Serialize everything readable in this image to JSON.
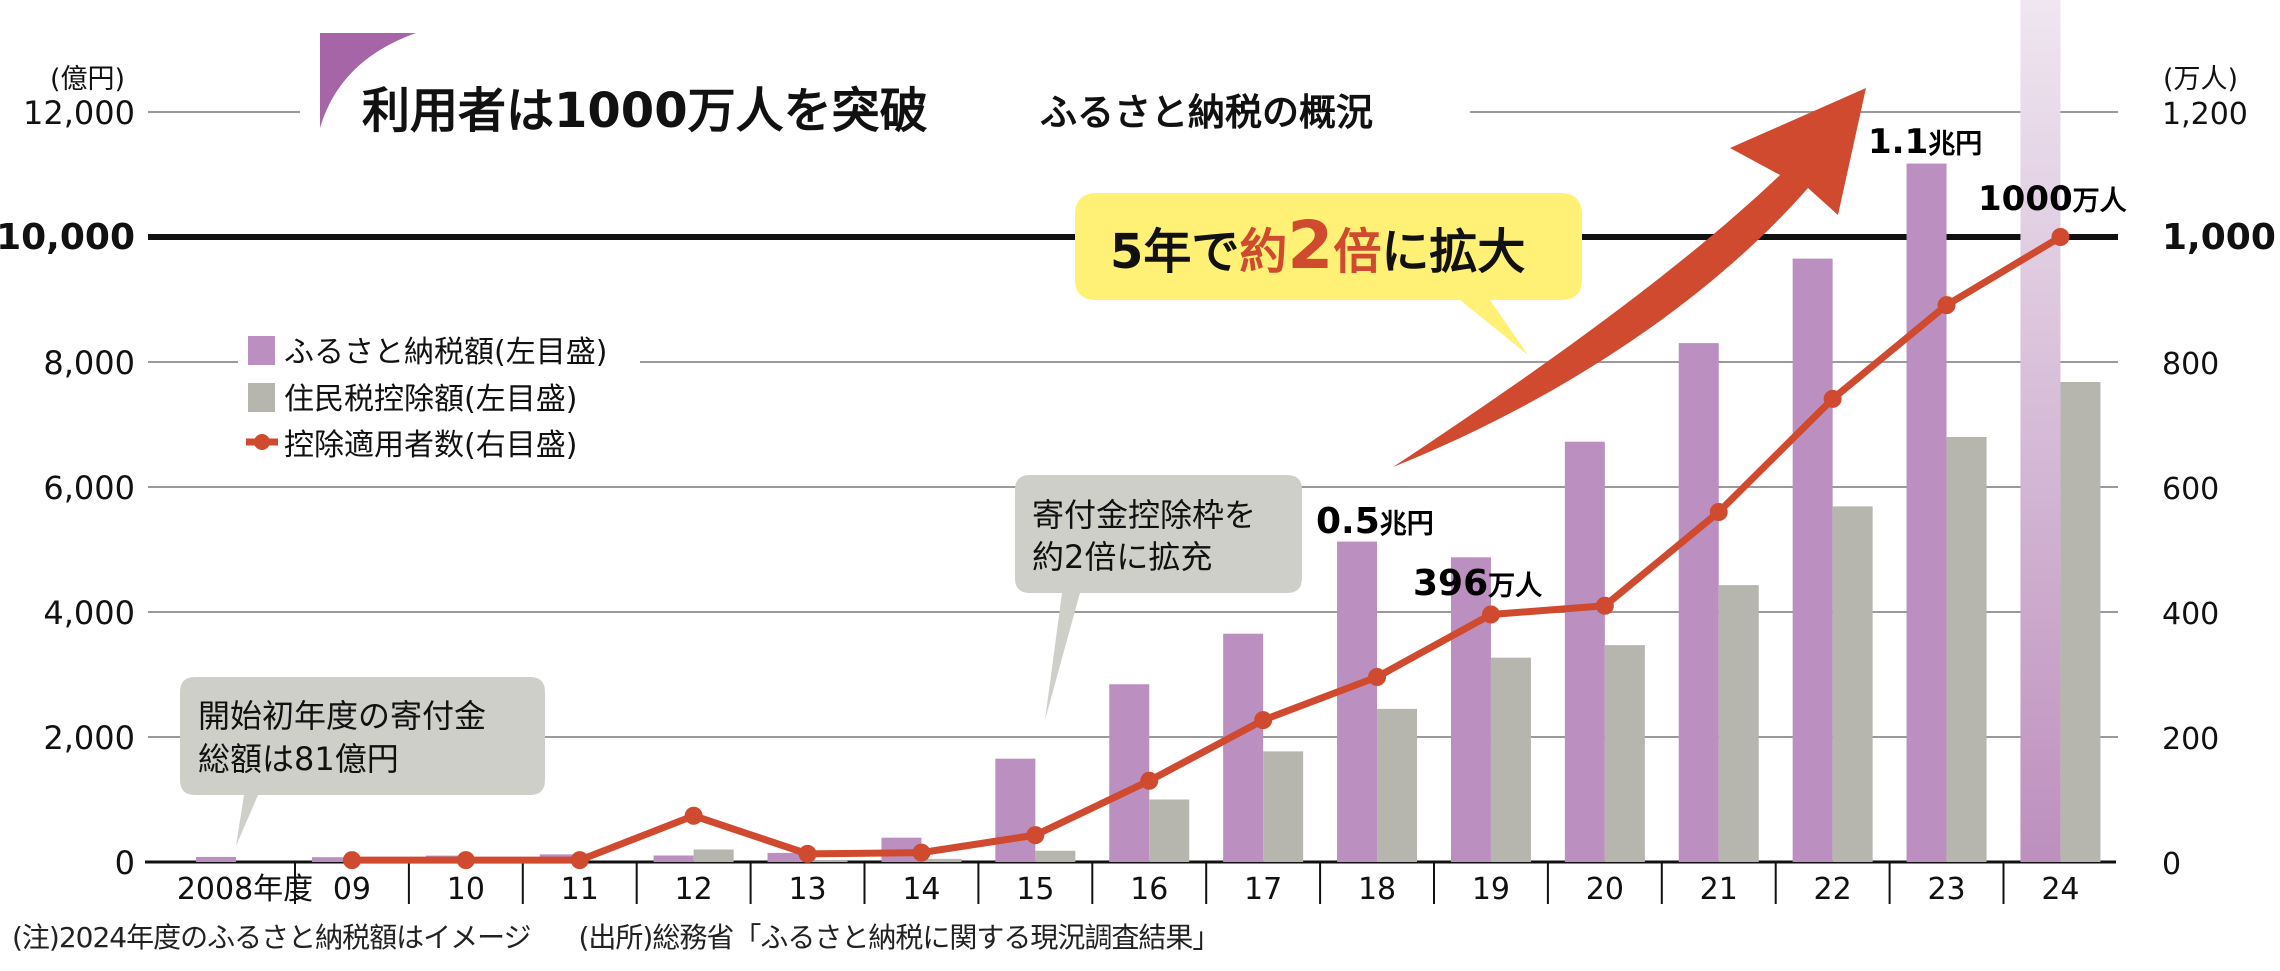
{
  "chart_data": {
    "type": "bar+line",
    "title": "利用者は1000万人を突破",
    "subtitle": "ふるさと納税の概況",
    "left_axis": {
      "unit": "(億円)",
      "ticks": [
        0,
        2000,
        4000,
        6000,
        8000,
        10000,
        12000
      ],
      "tick_labels": [
        "0",
        "2,000",
        "4,000",
        "6,000",
        "8,000",
        "10,000",
        "12,000"
      ],
      "range": [
        0,
        12000
      ]
    },
    "right_axis": {
      "unit": "(万人)",
      "ticks": [
        0,
        200,
        400,
        600,
        800,
        1000,
        1200
      ],
      "tick_labels": [
        "0",
        "200",
        "400",
        "600",
        "800",
        "1,000",
        "1,200"
      ],
      "range": [
        0,
        1200
      ]
    },
    "categories": [
      "2008年度",
      "09",
      "10",
      "11",
      "12",
      "13",
      "14",
      "15",
      "16",
      "17",
      "18",
      "19",
      "20",
      "21",
      "22",
      "23",
      "24"
    ],
    "series": [
      {
        "name": "ふるさと納税額(左目盛)",
        "kind": "bar",
        "axis": "left",
        "color": "#bb8fbf",
        "values": [
          81,
          77,
          102,
          122,
          104,
          146,
          389,
          1653,
          2844,
          3653,
          5127,
          4875,
          6725,
          8302,
          9654,
          11175,
          12700
        ]
      },
      {
        "name": "住民税控除額(左目盛)",
        "kind": "bar",
        "axis": "left",
        "color": "#b6b6ae",
        "values": [
          0,
          0,
          0,
          0,
          200,
          20,
          50,
          180,
          1000,
          1770,
          2450,
          3270,
          3470,
          4430,
          5690,
          6800,
          7680
        ]
      },
      {
        "name": "控除適用者数(右目盛)",
        "kind": "line",
        "axis": "right",
        "color": "#cf4a2e",
        "values": [
          null,
          3,
          3,
          3,
          74,
          13,
          15,
          43,
          130,
          227,
          296,
          396,
          410,
          560,
          741,
          891,
          1000
        ]
      }
    ],
    "highlight_reference_line": {
      "left_value": 10000,
      "right_value": 1000
    },
    "image_bar_note_category": "24",
    "annotations": [
      {
        "text_lines": [
          "開始初年度の寄付金",
          "総額は81億円"
        ],
        "style": "gray-callout",
        "points_to": "2008年度"
      },
      {
        "text_lines": [
          "寄付金控除枠を",
          "約2倍に拡充"
        ],
        "style": "gray-callout",
        "points_to": "15"
      },
      {
        "text_parts": [
          {
            "text": "5年で",
            "color": "#111111"
          },
          {
            "text": "約",
            "color": "#cf4a2e"
          },
          {
            "text": "2",
            "color": "#cf4a2e"
          },
          {
            "text": "倍",
            "color": "#cf4a2e"
          },
          {
            "text": "に拡大",
            "color": "#111111"
          }
        ],
        "style": "yellow-callout"
      },
      {
        "text": "0.5",
        "unit": "兆円",
        "points_to": "18"
      },
      {
        "text": "396",
        "unit": "万人",
        "points_to": "19"
      },
      {
        "text": "1.1",
        "unit": "兆円",
        "points_to": "23"
      },
      {
        "text": "1000",
        "unit": "万人",
        "points_to": "24"
      }
    ],
    "legend": {
      "placement": "upper-left",
      "items": [
        "ふるさと納税額(左目盛)",
        "住民税控除額(左目盛)",
        "控除適用者数(右目盛)"
      ]
    },
    "grid": true,
    "accent_colors": {
      "title_mark": "#a565a6",
      "arrow": "#cf4a2e",
      "yellow": "#fff176",
      "callout_gray": "#cfcfca",
      "image_bar": "#e6d6e8"
    }
  },
  "footnotes": {
    "note": "(注)2024年度のふるさと納税額はイメージ",
    "source": "(出所)総務省「ふるさと納税に関する現況調査結果」"
  }
}
